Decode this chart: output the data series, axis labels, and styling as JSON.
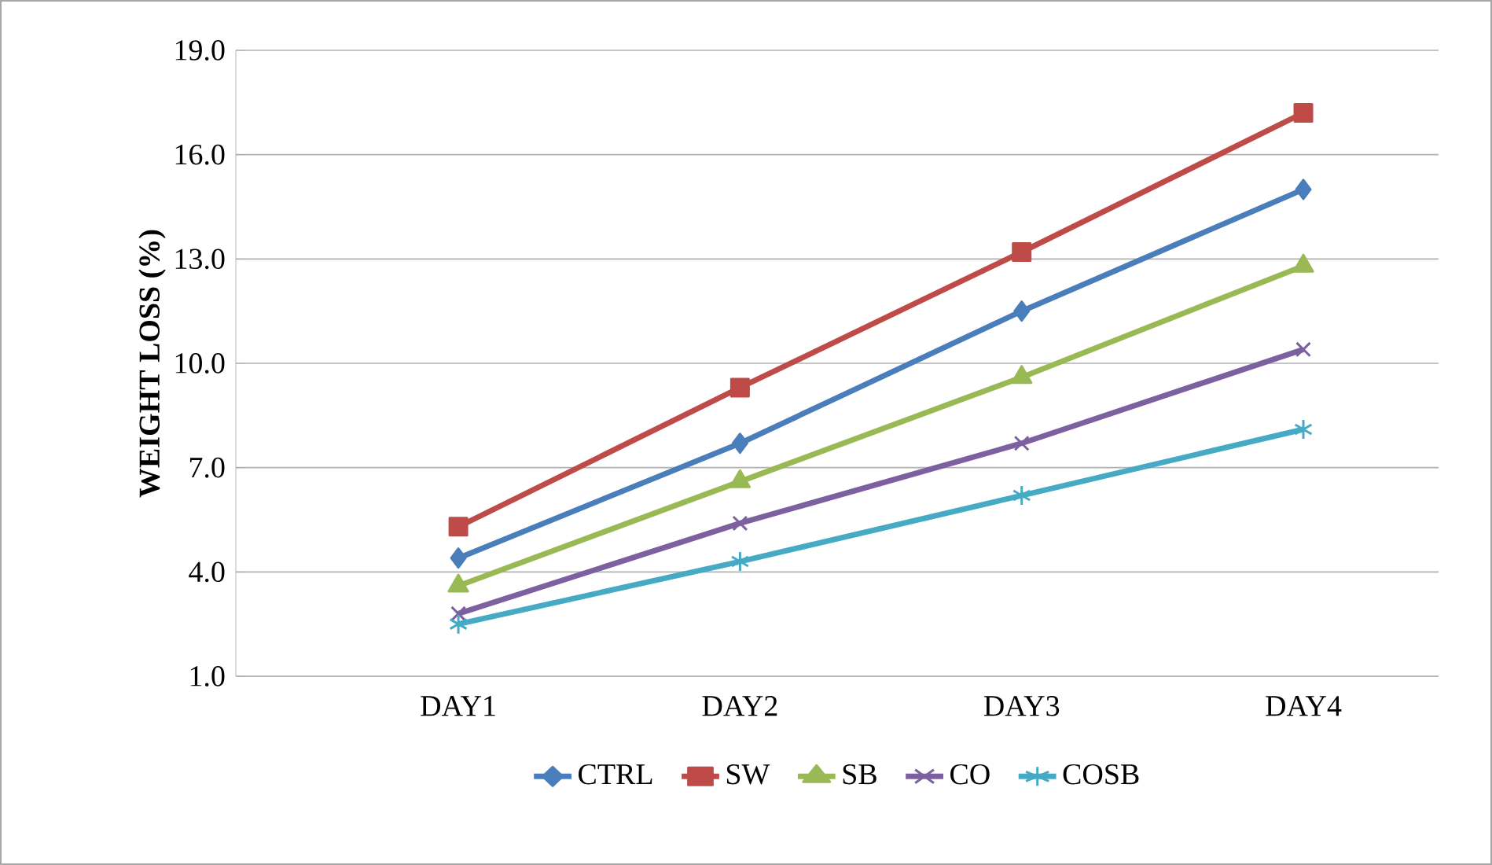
{
  "chart_data": {
    "type": "line",
    "ylabel": "WEIGHT LOSS (%)",
    "categories": [
      "DAY1",
      "DAY2",
      "DAY3",
      "DAY4"
    ],
    "series": [
      {
        "name": "CTRL",
        "color": "#4a7ebb",
        "marker": "diamond",
        "values": [
          4.4,
          7.7,
          11.5,
          15.0
        ]
      },
      {
        "name": "SW",
        "color": "#be4b48",
        "marker": "square",
        "values": [
          5.3,
          9.3,
          13.2,
          17.2
        ]
      },
      {
        "name": "SB",
        "color": "#98b954",
        "marker": "triangle",
        "values": [
          3.6,
          6.6,
          9.6,
          12.8
        ]
      },
      {
        "name": "CO",
        "color": "#7d60a0",
        "marker": "cross",
        "values": [
          2.8,
          5.4,
          7.7,
          10.4
        ]
      },
      {
        "name": "COSB",
        "color": "#46aac5",
        "marker": "cross",
        "values": [
          2.5,
          4.3,
          6.2,
          8.1
        ]
      }
    ],
    "ylim": [
      1,
      19
    ],
    "yticks": [
      {
        "value": 1,
        "label": "1.0"
      },
      {
        "value": 4,
        "label": "4.0"
      },
      {
        "value": 7,
        "label": "7.0"
      },
      {
        "value": 10,
        "label": "10.0"
      },
      {
        "value": 13,
        "label": "13.0"
      },
      {
        "value": 16,
        "label": "16.0"
      },
      {
        "value": 19,
        "label": "19.0"
      }
    ],
    "grid": "y",
    "legend": "bottom",
    "line_style": "solid"
  }
}
